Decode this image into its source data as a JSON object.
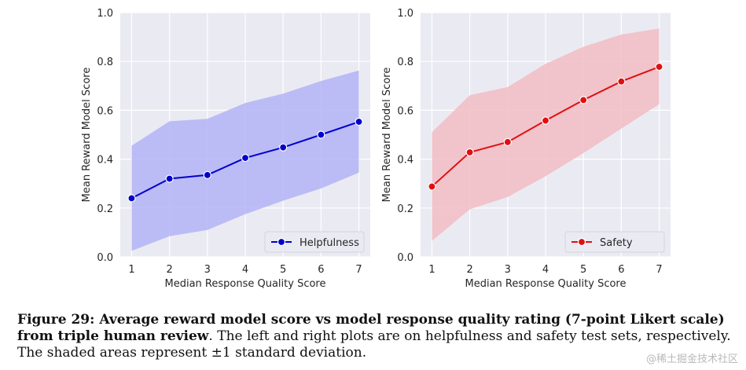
{
  "chart_data": [
    {
      "type": "line",
      "x": [
        1,
        2,
        3,
        4,
        5,
        6,
        7
      ],
      "series": [
        {
          "name": "Helpfulness",
          "values": [
            0.24,
            0.32,
            0.335,
            0.405,
            0.448,
            0.5,
            0.553
          ],
          "lower": [
            0.025,
            0.085,
            0.11,
            0.175,
            0.23,
            0.28,
            0.345
          ],
          "upper": [
            0.455,
            0.555,
            0.565,
            0.63,
            0.668,
            0.72,
            0.763
          ],
          "color": "#0000cc",
          "band_color": "#b3b3f7"
        }
      ],
      "title": "",
      "xlabel": "Median Response Quality Score",
      "ylabel": "Mean Reward Model Score",
      "xlim": [
        0.7,
        7.3
      ],
      "ylim": [
        0.0,
        1.0
      ],
      "xticks": [
        "1",
        "2",
        "3",
        "4",
        "5",
        "6",
        "7"
      ],
      "yticks": [
        "0.0",
        "0.2",
        "0.4",
        "0.6",
        "0.8",
        "1.0"
      ],
      "grid": true,
      "legend": "bottom-right"
    },
    {
      "type": "line",
      "x": [
        1,
        2,
        3,
        4,
        5,
        6,
        7
      ],
      "series": [
        {
          "name": "Safety",
          "values": [
            0.288,
            0.428,
            0.47,
            0.558,
            0.642,
            0.718,
            0.778
          ],
          "lower": [
            0.065,
            0.195,
            0.245,
            0.33,
            0.425,
            0.525,
            0.625
          ],
          "upper": [
            0.51,
            0.662,
            0.695,
            0.79,
            0.86,
            0.91,
            0.935
          ],
          "color": "#e01010",
          "band_color": "#f2bcc4"
        }
      ],
      "title": "",
      "xlabel": "Median Response Quality Score",
      "ylabel": "Mean Reward Model Score",
      "xlim": [
        0.7,
        7.3
      ],
      "ylim": [
        0.0,
        1.0
      ],
      "xticks": [
        "1",
        "2",
        "3",
        "4",
        "5",
        "6",
        "7"
      ],
      "yticks": [
        "0.0",
        "0.2",
        "0.4",
        "0.6",
        "0.8",
        "1.0"
      ],
      "grid": true,
      "legend": "bottom-right"
    }
  ],
  "caption": {
    "bold": "Figure 29: Average reward model score vs model response quality rating (7-point Likert scale) from triple human review",
    "rest": ". The left and right plots are on helpfulness and safety test sets, respectively. The shaded areas represent ±1 standard deviation."
  },
  "watermark": "@稀土掘金技术社区"
}
